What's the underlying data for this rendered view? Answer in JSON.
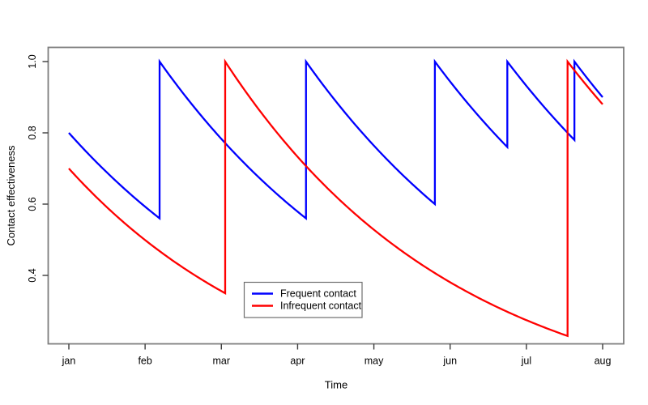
{
  "chart_data": {
    "type": "line",
    "title": "",
    "xlabel": "Time",
    "ylabel": "Contact effectiveness",
    "x_unit_months_from_jan": true,
    "x_ticks": [
      {
        "t": 0,
        "label": "jan"
      },
      {
        "t": 1,
        "label": "feb"
      },
      {
        "t": 2,
        "label": "mar"
      },
      {
        "t": 3,
        "label": "apr"
      },
      {
        "t": 4,
        "label": "may"
      },
      {
        "t": 5,
        "label": "jun"
      },
      {
        "t": 6,
        "label": "jul"
      },
      {
        "t": 7,
        "label": "aug"
      }
    ],
    "y_ticks": [
      {
        "v": 0.4,
        "label": "0.4"
      },
      {
        "v": 0.6,
        "label": "0.6"
      },
      {
        "v": 0.8,
        "label": "0.8"
      },
      {
        "v": 1.0,
        "label": "1.0"
      }
    ],
    "xlim_months": [
      -0.27,
      7.28
    ],
    "ylim": [
      0.2,
      1.045
    ],
    "grid": false,
    "model": "effectiveness decays exponentially between contacts and resets to 1.0 at each contact",
    "legend": {
      "position": "inside-bottom-left-of-center",
      "entries": [
        {
          "label": "Frequent contact",
          "color": "#0000FF"
        },
        {
          "label": "Infrequent contact",
          "color": "#FF0000"
        }
      ]
    },
    "series": [
      {
        "name": "Frequent contact",
        "color": "#0000FF",
        "segments": [
          {
            "t_start": 0.0,
            "v_start": 0.8,
            "t_end": 1.19,
            "v_end": 0.56
          },
          {
            "t_start": 1.19,
            "v_start": 1.0,
            "t_end": 3.11,
            "v_end": 0.56
          },
          {
            "t_start": 3.11,
            "v_start": 1.0,
            "t_end": 4.8,
            "v_end": 0.6
          },
          {
            "t_start": 4.8,
            "v_start": 1.0,
            "t_end": 5.75,
            "v_end": 0.76
          },
          {
            "t_start": 5.75,
            "v_start": 1.0,
            "t_end": 6.63,
            "v_end": 0.78
          },
          {
            "t_start": 6.63,
            "v_start": 1.0,
            "t_end": 7.0,
            "v_end": 0.9
          }
        ]
      },
      {
        "name": "Infrequent contact",
        "color": "#FF0000",
        "segments": [
          {
            "t_start": 0.0,
            "v_start": 0.7,
            "t_end": 2.05,
            "v_end": 0.35
          },
          {
            "t_start": 2.05,
            "v_start": 1.0,
            "t_end": 6.54,
            "v_end": 0.23
          },
          {
            "t_start": 6.54,
            "v_start": 1.0,
            "t_end": 7.0,
            "v_end": 0.88
          }
        ]
      }
    ],
    "colors": {
      "frequent": "#0000FF",
      "infrequent": "#FF0000",
      "box_border": "#7d7d7d",
      "tick": "#3c3c3c",
      "text": "#000000",
      "background": "#ffffff"
    }
  }
}
